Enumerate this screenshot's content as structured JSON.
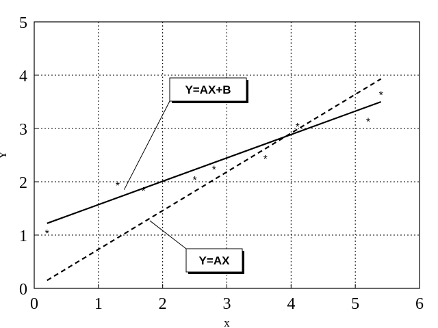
{
  "chart_data": {
    "type": "scatter",
    "title": "",
    "xlabel": "x",
    "ylabel": "Y",
    "xlim": [
      0,
      6
    ],
    "ylim": [
      0,
      5
    ],
    "xticks": [
      0,
      1,
      2,
      3,
      4,
      5,
      6
    ],
    "yticks": [
      0,
      1,
      2,
      3,
      4,
      5
    ],
    "grid": true,
    "points": {
      "marker": "*",
      "x": [
        0.2,
        1.3,
        1.7,
        2.5,
        2.8,
        3.6,
        4.1,
        5.2,
        5.4
      ],
      "y": [
        1.1,
        2.0,
        1.9,
        2.1,
        2.3,
        2.5,
        3.1,
        3.2,
        3.7
      ]
    },
    "fits": [
      {
        "label": "Y=AX+B",
        "style": "solid",
        "x": [
          0.2,
          5.4
        ],
        "y": [
          1.22,
          3.5
        ]
      },
      {
        "label": "Y=AX",
        "style": "dashed",
        "x": [
          0.2,
          5.4
        ],
        "y": [
          0.15,
          3.93
        ]
      }
    ],
    "annotations": [
      {
        "label": "Y=AX+B",
        "points_to": [
          1.4,
          1.85
        ]
      },
      {
        "label": "Y=AX",
        "points_to": [
          1.8,
          1.27
        ]
      }
    ]
  }
}
